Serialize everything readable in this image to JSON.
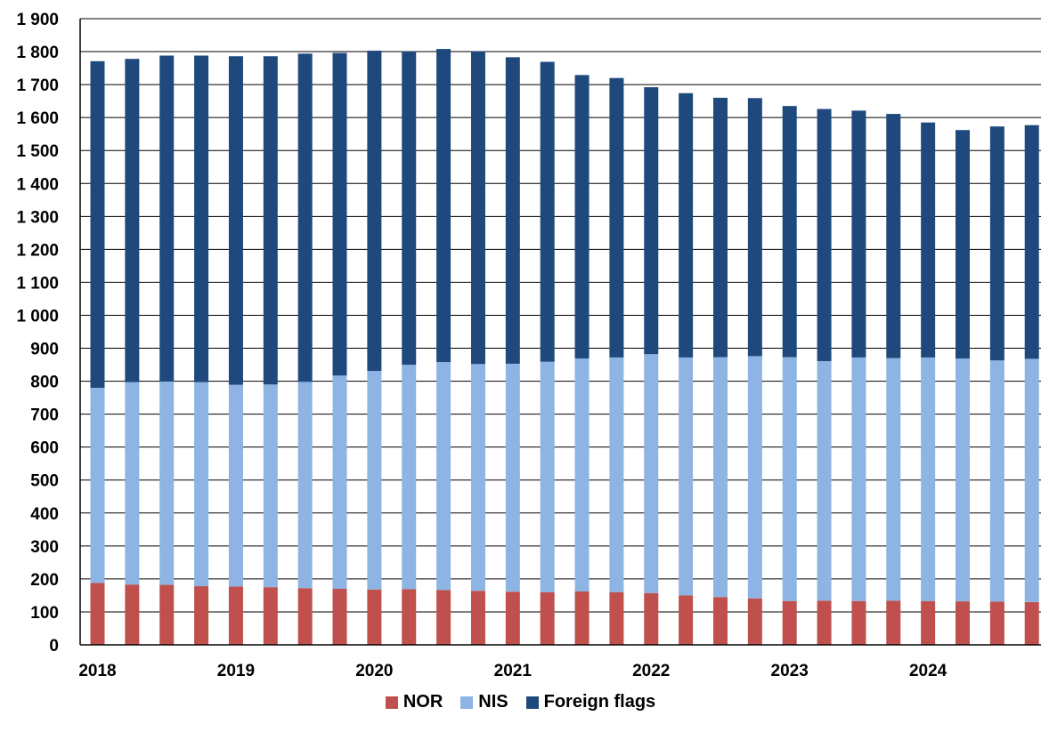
{
  "chart_data": {
    "type": "bar",
    "stacked": true,
    "x_labels": [
      "2018",
      "2019",
      "2020",
      "2021",
      "2022",
      "2023",
      "2024"
    ],
    "periods_per_year": 4,
    "ylim": [
      0,
      1900
    ],
    "yticks": [
      "0",
      "100",
      "200",
      "300",
      "400",
      "500",
      "600",
      "700",
      "800",
      "900",
      "1 000",
      "1 100",
      "1 200",
      "1 300",
      "1 400",
      "1 500",
      "1 600",
      "1 700",
      "1 800",
      "1 900"
    ],
    "grid": false,
    "legend_position": "bottom",
    "series": [
      {
        "name": "NOR",
        "color": "#c0504d",
        "values": [
          188,
          183,
          182,
          178,
          177,
          175,
          172,
          170,
          168,
          169,
          166,
          164,
          161,
          160,
          162,
          160,
          157,
          150,
          145,
          141,
          133,
          134,
          133,
          134,
          133,
          132,
          131,
          130
        ]
      },
      {
        "name": "NIS",
        "color": "#8db4e2",
        "values": [
          592,
          614,
          617,
          619,
          612,
          615,
          626,
          647,
          663,
          681,
          692,
          688,
          692,
          699,
          707,
          712,
          725,
          722,
          728,
          735,
          740,
          727,
          739,
          736,
          739,
          737,
          732,
          738
        ]
      },
      {
        "name": "Foreign flags",
        "color": "#1f497d",
        "values": [
          991,
          981,
          989,
          991,
          997,
          996,
          996,
          979,
          972,
          951,
          950,
          949,
          930,
          910,
          860,
          848,
          810,
          802,
          787,
          783,
          762,
          765,
          749,
          741,
          713,
          693,
          710,
          709
        ]
      }
    ]
  }
}
